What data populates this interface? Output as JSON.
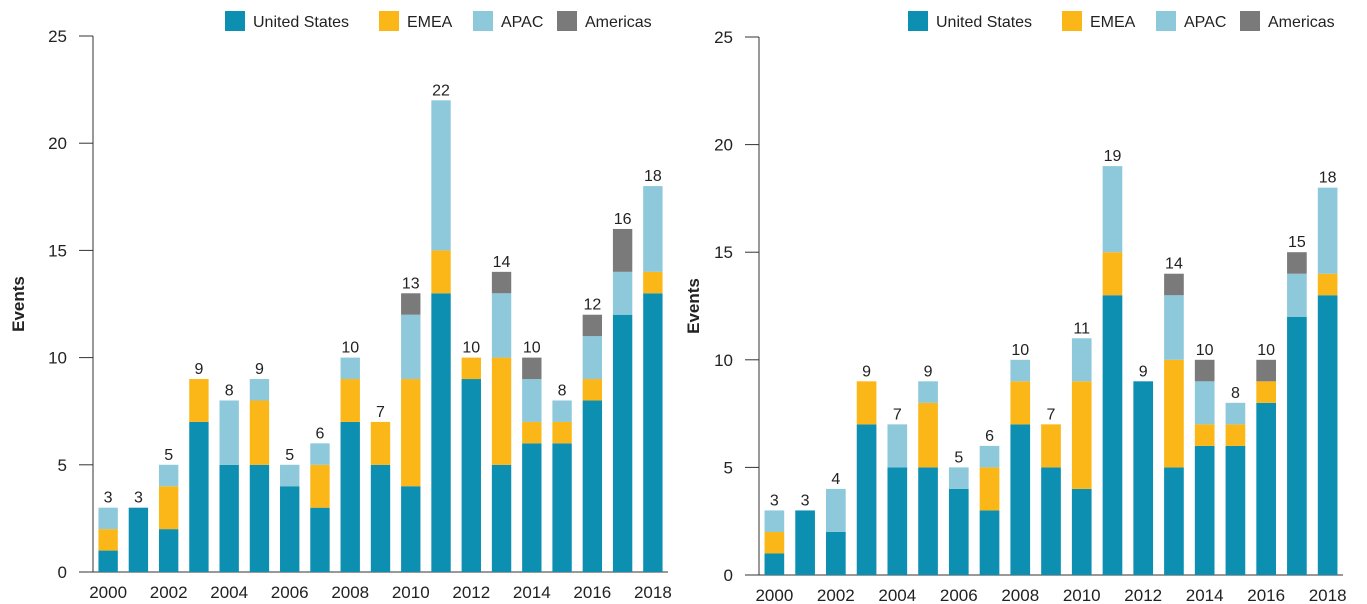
{
  "chart_data": [
    {
      "type": "bar",
      "stacked": true,
      "ylabel": "Events",
      "xlabel": "",
      "ylim": [
        0,
        25
      ],
      "yticks": [
        0,
        5,
        10,
        15,
        20,
        25
      ],
      "categories": [
        "2000",
        "2001",
        "2002",
        "2003",
        "2004",
        "2005",
        "2006",
        "2007",
        "2008",
        "2009",
        "2010",
        "2011",
        "2012",
        "2013",
        "2014",
        "2015",
        "2016",
        "2017",
        "2018"
      ],
      "xtick_labels": [
        "2000",
        "2002",
        "2004",
        "2006",
        "2008",
        "2010",
        "2012",
        "2014",
        "2016",
        "2018"
      ],
      "legend_position": "top-right",
      "series": [
        {
          "name": "United States",
          "color": "#0d8fb1",
          "values": [
            1,
            3,
            2,
            7,
            5,
            5,
            4,
            3,
            7,
            5,
            4,
            13,
            9,
            5,
            6,
            6,
            8,
            12,
            13
          ]
        },
        {
          "name": "EMEA",
          "color": "#fbb718",
          "values": [
            1,
            0,
            2,
            2,
            0,
            3,
            0,
            2,
            2,
            2,
            5,
            2,
            1,
            5,
            1,
            1,
            1,
            0,
            1
          ]
        },
        {
          "name": "APAC",
          "color": "#8dc8db",
          "values": [
            1,
            0,
            1,
            0,
            3,
            1,
            1,
            1,
            1,
            0,
            3,
            7,
            0,
            3,
            2,
            1,
            2,
            2,
            4
          ]
        },
        {
          "name": "Americas",
          "color": "#7a7a7a",
          "values": [
            0,
            0,
            0,
            0,
            0,
            0,
            0,
            0,
            0,
            0,
            1,
            0,
            0,
            1,
            1,
            0,
            1,
            2,
            0
          ]
        }
      ],
      "totals": [
        3,
        3,
        5,
        9,
        8,
        9,
        5,
        6,
        10,
        7,
        13,
        22,
        10,
        14,
        10,
        8,
        12,
        16,
        18
      ]
    },
    {
      "type": "bar",
      "stacked": true,
      "ylabel": "Events",
      "xlabel": "",
      "ylim": [
        0,
        25
      ],
      "yticks": [
        0,
        5,
        10,
        15,
        20,
        25
      ],
      "categories": [
        "2000",
        "2001",
        "2002",
        "2003",
        "2004",
        "2005",
        "2006",
        "2007",
        "2008",
        "2009",
        "2010",
        "2011",
        "2012",
        "2013",
        "2014",
        "2015",
        "2016",
        "2017",
        "2018"
      ],
      "xtick_labels": [
        "2000",
        "2002",
        "2004",
        "2006",
        "2008",
        "2010",
        "2012",
        "2014",
        "2016",
        "2018"
      ],
      "legend_position": "top-right",
      "series": [
        {
          "name": "United States",
          "color": "#0d8fb1",
          "values": [
            1,
            3,
            2,
            7,
            5,
            5,
            4,
            3,
            7,
            5,
            4,
            13,
            9,
            5,
            6,
            6,
            8,
            12,
            13
          ]
        },
        {
          "name": "EMEA",
          "color": "#fbb718",
          "values": [
            1,
            0,
            0,
            2,
            0,
            3,
            0,
            2,
            2,
            2,
            5,
            2,
            0,
            5,
            1,
            1,
            1,
            0,
            1
          ]
        },
        {
          "name": "APAC",
          "color": "#8dc8db",
          "values": [
            1,
            0,
            2,
            0,
            2,
            1,
            1,
            1,
            1,
            0,
            2,
            4,
            0,
            3,
            2,
            1,
            0,
            2,
            4
          ]
        },
        {
          "name": "Americas",
          "color": "#7a7a7a",
          "values": [
            0,
            0,
            0,
            0,
            0,
            0,
            0,
            0,
            0,
            0,
            0,
            0,
            0,
            1,
            1,
            0,
            1,
            1,
            0
          ]
        }
      ],
      "totals": [
        3,
        3,
        4,
        9,
        7,
        9,
        5,
        6,
        10,
        7,
        11,
        19,
        9,
        14,
        10,
        8,
        10,
        15,
        18
      ]
    }
  ]
}
